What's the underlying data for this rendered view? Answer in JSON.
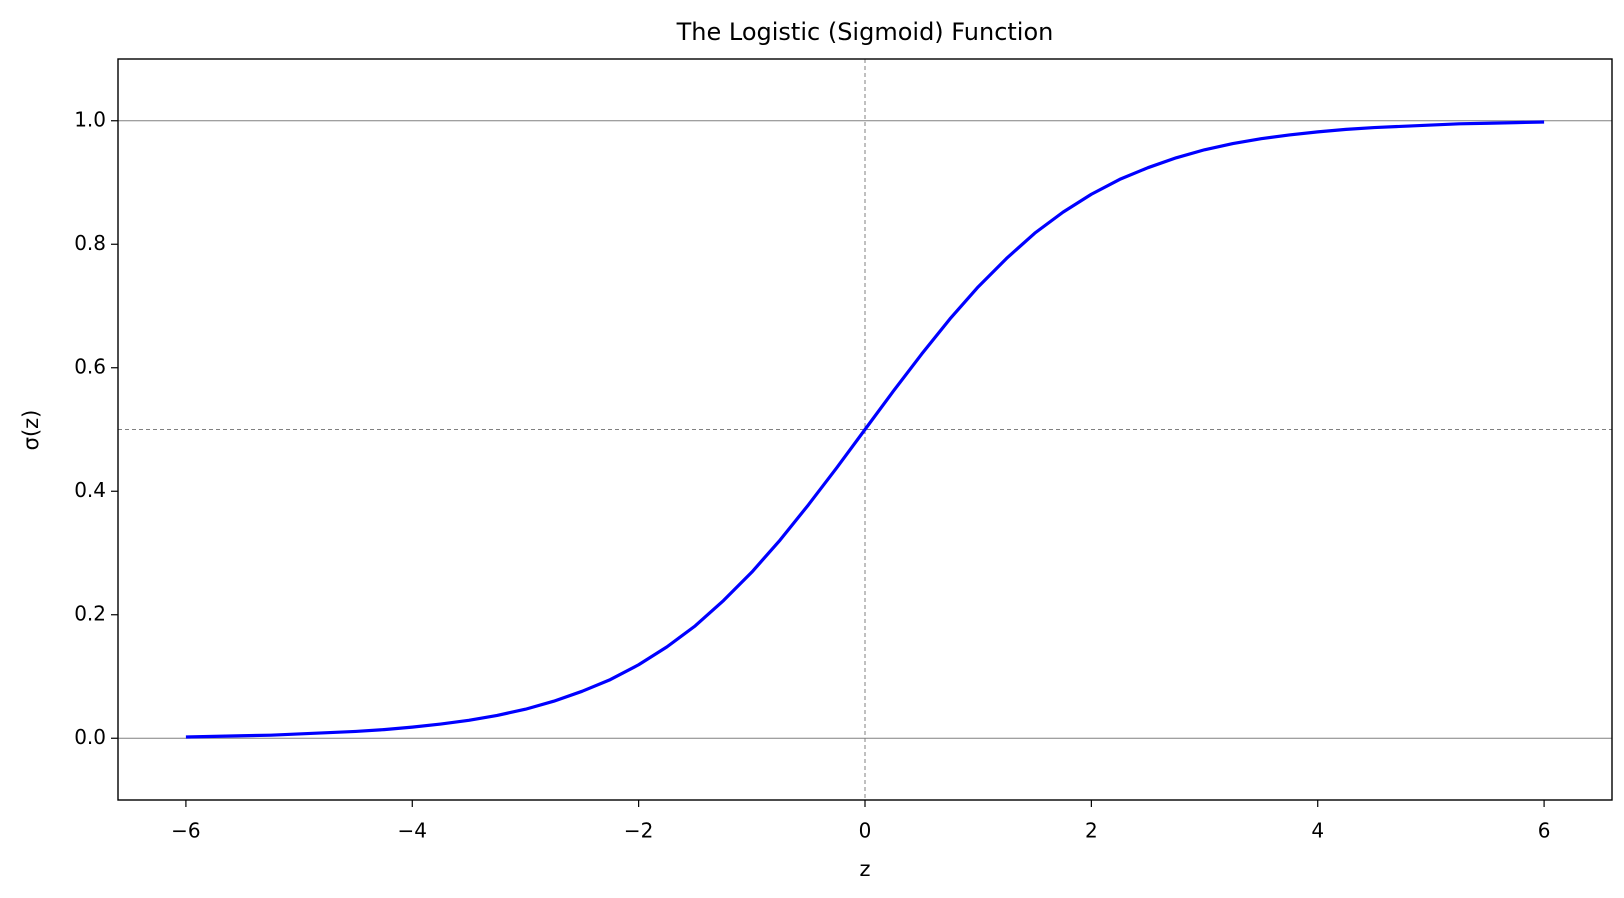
{
  "chart_data": {
    "type": "line",
    "title": "The Logistic (Sigmoid) Function",
    "x_label": "z",
    "y_label": "σ(z)",
    "x": [
      -6,
      -5.75,
      -5.5,
      -5.25,
      -5,
      -4.75,
      -4.5,
      -4.25,
      -4,
      -3.75,
      -3.5,
      -3.25,
      -3,
      -2.75,
      -2.5,
      -2.25,
      -2,
      -1.75,
      -1.5,
      -1.25,
      -1,
      -0.75,
      -0.5,
      -0.25,
      0,
      0.25,
      0.5,
      0.75,
      1,
      1.25,
      1.5,
      1.75,
      2,
      2.25,
      2.5,
      2.75,
      3,
      3.25,
      3.5,
      3.75,
      4,
      4.25,
      4.5,
      4.75,
      5,
      5.25,
      5.5,
      5.75,
      6
    ],
    "series": [
      {
        "color": "#0000ff",
        "values": [
          0.002,
          0.003,
          0.004,
          0.005,
          0.007,
          0.009,
          0.011,
          0.014,
          0.018,
          0.023,
          0.029,
          0.037,
          0.047,
          0.06,
          0.076,
          0.095,
          0.119,
          0.148,
          0.182,
          0.223,
          0.269,
          0.321,
          0.378,
          0.438,
          0.5,
          0.562,
          0.622,
          0.679,
          0.731,
          0.777,
          0.818,
          0.852,
          0.881,
          0.905,
          0.924,
          0.94,
          0.953,
          0.963,
          0.971,
          0.977,
          0.982,
          0.986,
          0.989,
          0.991,
          0.993,
          0.995,
          0.996,
          0.997,
          0.998
        ]
      }
    ],
    "xlim": [
      -6.6,
      6.6
    ],
    "ylim": [
      -0.1,
      1.1
    ],
    "xticks": [
      {
        "value": -6,
        "label": "−6"
      },
      {
        "value": -4,
        "label": "−4"
      },
      {
        "value": -2,
        "label": "−2"
      },
      0,
      2,
      4,
      6
    ],
    "yticks": [
      {
        "value": 0,
        "label": "0.0"
      },
      {
        "value": 0.2,
        "label": "0.2"
      },
      {
        "value": 0.4,
        "label": "0.4"
      },
      {
        "value": 0.6,
        "label": "0.6"
      },
      {
        "value": 0.8,
        "label": "0.8"
      },
      {
        "value": 1,
        "label": "1.0"
      }
    ],
    "reference_lines": {
      "solid_y": [
        0,
        1
      ],
      "dashed_y": [
        0.5
      ],
      "dashed_x": [
        0
      ]
    }
  }
}
